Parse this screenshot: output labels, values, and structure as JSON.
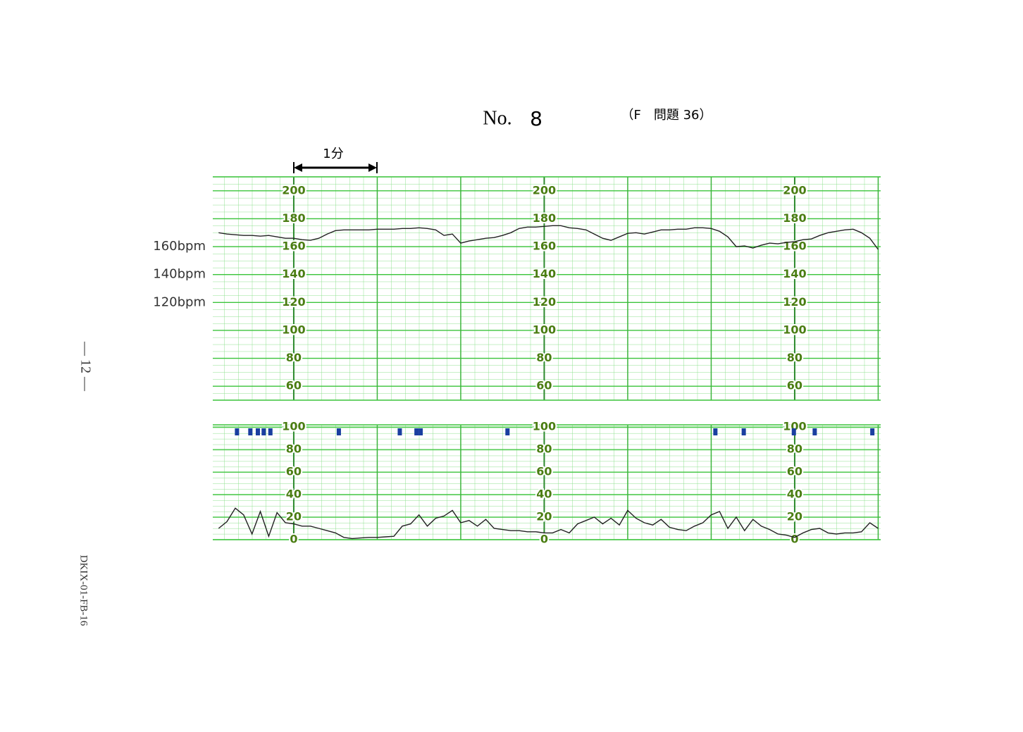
{
  "header": {
    "number_label": "No.",
    "number": "8",
    "question": "（F　問題 36）"
  },
  "scale_label": "1分",
  "side": {
    "page": "— 12 —",
    "code": "DKIX-01-FB-16"
  },
  "chart_data": [
    {
      "type": "line",
      "annotations": [
        "160bpm",
        "140bpm",
        "120bpm"
      ],
      "annotation_values": [
        160,
        140,
        120
      ],
      "color": "#222222",
      "x": [
        -0.9,
        -0.8,
        -0.7,
        -0.6,
        -0.5,
        -0.4,
        -0.3,
        -0.2,
        -0.1,
        0.0,
        0.1,
        0.2,
        0.3,
        0.4,
        0.5,
        0.6,
        0.7,
        0.8,
        0.9,
        1.0,
        1.1,
        1.2,
        1.3,
        1.4,
        1.5,
        1.6,
        1.7,
        1.8,
        1.9,
        2.0,
        2.1,
        2.2,
        2.3,
        2.4,
        2.5,
        2.6,
        2.7,
        2.8,
        2.9,
        3.0,
        3.1,
        3.2,
        3.3,
        3.4,
        3.5,
        3.6,
        3.7,
        3.8,
        3.9,
        4.0,
        4.1,
        4.2,
        4.3,
        4.4,
        4.5,
        4.6,
        4.7,
        4.8,
        4.9,
        5.0,
        5.1,
        5.2,
        5.3,
        5.4,
        5.5,
        5.6,
        5.7,
        5.8,
        5.9,
        6.0,
        6.1,
        6.2,
        6.3,
        6.4,
        6.5,
        6.6,
        6.7,
        6.8,
        6.9,
        7.0
      ],
      "values": [
        170,
        169,
        168.5,
        168,
        168,
        167.5,
        168,
        167,
        166,
        166,
        165,
        164.5,
        166,
        169,
        171.5,
        172,
        172,
        172,
        172,
        172.5,
        172.5,
        172.5,
        173,
        173,
        173.5,
        173,
        172,
        168,
        169,
        162.5,
        164,
        165,
        166,
        166.5,
        168,
        170,
        173,
        174,
        174,
        174.5,
        175,
        175,
        173.5,
        173,
        172,
        169,
        166,
        164.5,
        167,
        169.5,
        170,
        169,
        170.5,
        172,
        172,
        172.5,
        172.5,
        173.5,
        173.5,
        173,
        171,
        167,
        160,
        160.5,
        159,
        161,
        162.5,
        162,
        163,
        163.5,
        165,
        165.5,
        168,
        170,
        171,
        172,
        172.5,
        170,
        166,
        158
      ],
      "xlim": [
        -0.97,
        7.03
      ],
      "xticks": [
        0,
        1,
        2,
        3,
        4,
        5,
        6,
        7
      ],
      "ylim": [
        50,
        210
      ],
      "yticks": [
        60,
        80,
        100,
        120,
        140,
        160,
        180,
        200
      ],
      "grid": true
    },
    {
      "type": "line",
      "color": "#222222",
      "x": [
        -0.9,
        -0.8,
        -0.7,
        -0.6,
        -0.5,
        -0.4,
        -0.3,
        -0.2,
        -0.1,
        0.0,
        0.1,
        0.2,
        0.3,
        0.4,
        0.5,
        0.6,
        0.7,
        0.8,
        0.9,
        1.0,
        1.1,
        1.2,
        1.3,
        1.4,
        1.5,
        1.6,
        1.7,
        1.8,
        1.9,
        2.0,
        2.1,
        2.2,
        2.3,
        2.4,
        2.5,
        2.6,
        2.7,
        2.8,
        2.9,
        3.0,
        3.1,
        3.2,
        3.3,
        3.4,
        3.5,
        3.6,
        3.7,
        3.8,
        3.9,
        4.0,
        4.1,
        4.2,
        4.3,
        4.4,
        4.5,
        4.6,
        4.7,
        4.8,
        4.9,
        5.0,
        5.1,
        5.2,
        5.3,
        5.4,
        5.5,
        5.6,
        5.7,
        5.8,
        5.9,
        6.0,
        6.1,
        6.2,
        6.3,
        6.4,
        6.5,
        6.6,
        6.7,
        6.8,
        6.9,
        7.0
      ],
      "values": [
        10,
        16,
        28,
        22,
        5,
        25,
        3,
        24,
        15,
        14,
        12,
        12,
        10,
        8,
        6,
        2,
        1,
        1.5,
        2,
        2,
        2.5,
        3,
        12,
        14,
        22,
        12,
        19,
        21,
        26,
        15,
        17,
        12,
        18,
        10,
        9,
        8,
        8,
        7,
        7,
        6,
        6,
        9,
        6,
        14,
        17,
        20,
        14,
        19,
        13,
        26,
        19,
        15,
        13,
        18,
        11,
        9,
        8,
        12,
        15,
        22,
        25,
        10,
        20,
        8,
        18,
        12,
        9,
        5,
        4,
        2,
        6,
        9,
        10,
        6,
        5,
        6,
        6,
        7,
        15,
        10
      ],
      "markers": {
        "color": "#1a3fa0",
        "x": [
          -0.68,
          -0.52,
          -0.43,
          -0.36,
          -0.28,
          0.54,
          1.27,
          1.47,
          1.52,
          2.56,
          5.05,
          5.39,
          5.99,
          6.24,
          6.93
        ]
      },
      "xlim": [
        -0.97,
        7.03
      ],
      "xticks": [
        0,
        1,
        2,
        3,
        4,
        5,
        6,
        7
      ],
      "ylim": [
        0,
        102
      ],
      "yticks": [
        0,
        20,
        40,
        60,
        80,
        100
      ],
      "grid": true
    }
  ]
}
